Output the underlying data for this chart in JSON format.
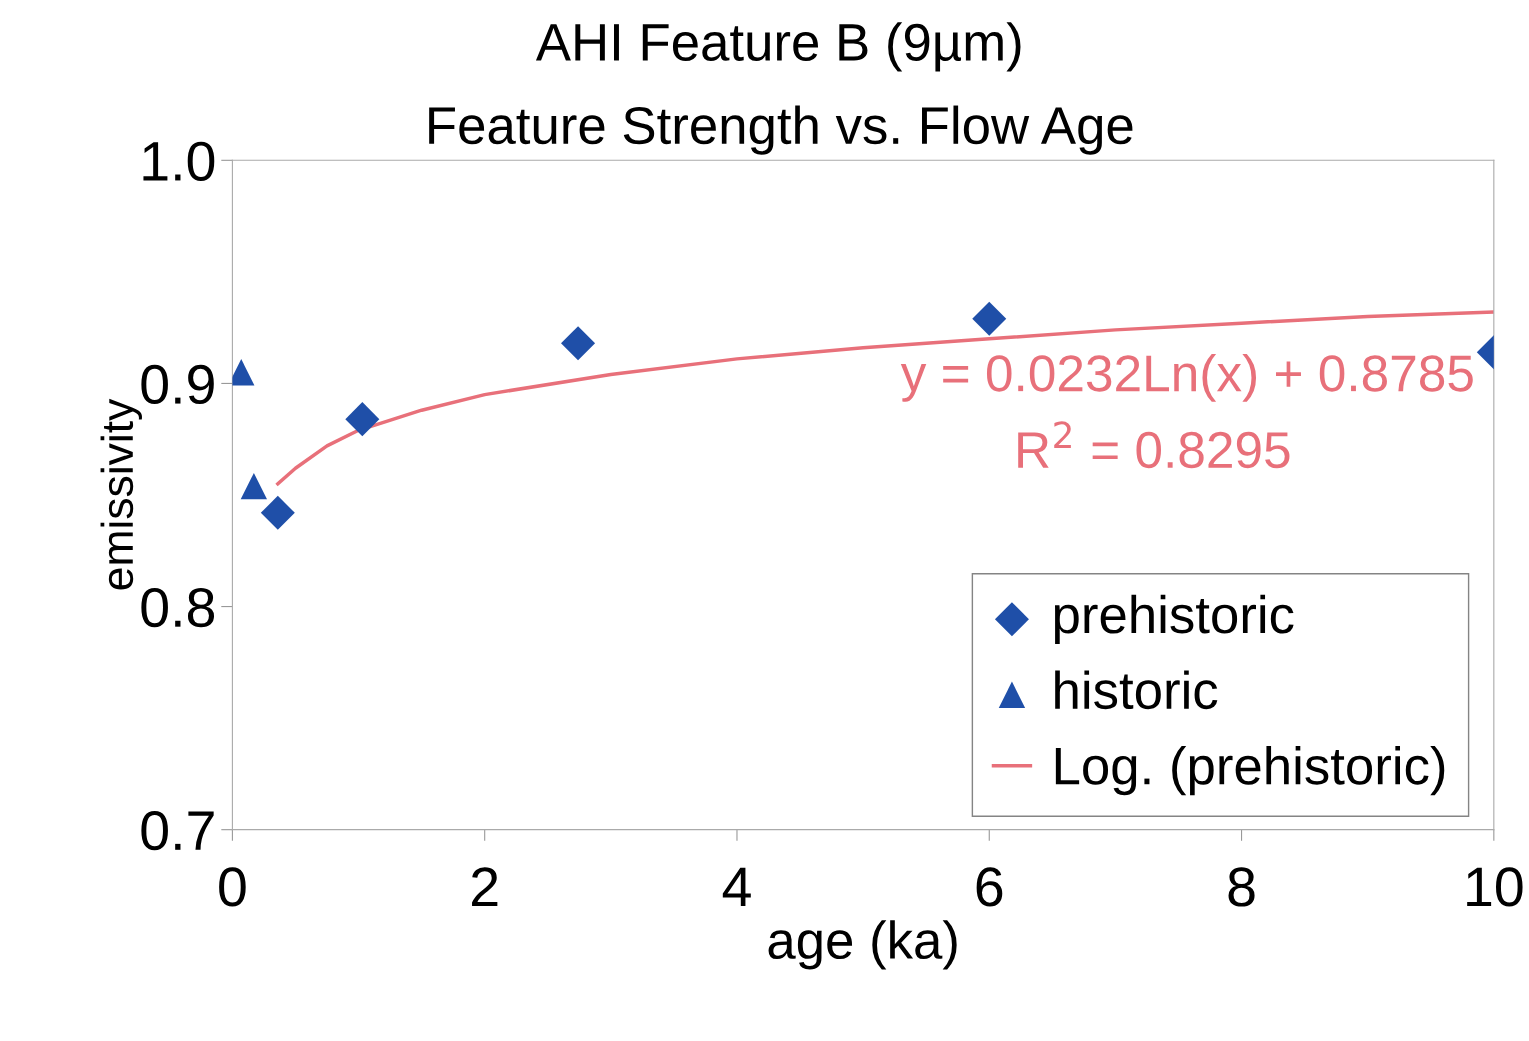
{
  "chart_data": {
    "type": "scatter",
    "title": "AHI Feature B (9µm)",
    "subtitle": "Feature Strength vs. Flow Age",
    "xlabel": "age (ka)",
    "ylabel": "emissivity",
    "xlim": [
      0,
      10
    ],
    "xticks": [
      0,
      2,
      4,
      6,
      8,
      10
    ],
    "ylim": [
      0.7,
      1.0
    ],
    "yticks": [
      {
        "value": 0.7,
        "label": "0.7"
      },
      {
        "value": 0.8,
        "label": "0.8"
      },
      {
        "value": 0.9,
        "label": "0.9"
      },
      {
        "value": 1.0,
        "label": "1.0"
      }
    ],
    "grid": false,
    "legend": "bottom right",
    "series": [
      {
        "name": "prehistoric",
        "color": "#1f4fa8",
        "marker": "diamond",
        "x": [
          0.36,
          1.03,
          2.74,
          6.0,
          10.0
        ],
        "values": [
          0.842,
          0.884,
          0.918,
          0.929,
          0.914
        ]
      },
      {
        "name": "historic",
        "color": "#1f4fa8",
        "marker": "triangle",
        "x": [
          0.07,
          0.17
        ],
        "values": [
          0.905,
          0.854
        ]
      },
      {
        "name": "Log. (prehistoric)",
        "type": "line",
        "color": "#e8707a",
        "marker": "none",
        "x": [
          0.36,
          0.5,
          0.75,
          1,
          1.5,
          2,
          3,
          4,
          5,
          6,
          7,
          8,
          9,
          10
        ],
        "values": [
          0.855,
          0.862,
          0.872,
          0.879,
          0.888,
          0.895,
          0.904,
          0.911,
          0.916,
          0.92,
          0.924,
          0.927,
          0.93,
          0.932
        ]
      }
    ],
    "annotations": [
      "y = 0.0232Ln(x) + 0.8785",
      "R$^{2}$ = 0.8295"
    ]
  }
}
